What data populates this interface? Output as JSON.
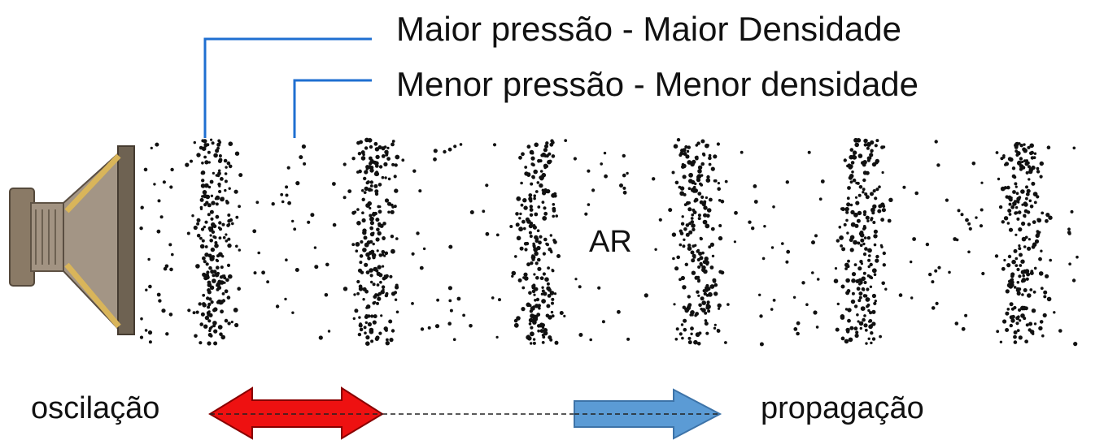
{
  "labels": {
    "high": "Maior pressão - Maior Densidade",
    "low": "Menor pressão - Menor densidade",
    "medium": "AR",
    "oscillation": "oscilação",
    "propagation": "propagação"
  },
  "icons": {
    "speaker": "speaker-icon",
    "oscillation_arrow": "double-arrow-icon",
    "propagation_arrow": "right-arrow-icon"
  },
  "colors": {
    "leader_line": "#1f6fd1",
    "oscillation_arrow": "#ee1111",
    "propagation_arrow": "#5b9bd5",
    "particles": "#111111"
  }
}
